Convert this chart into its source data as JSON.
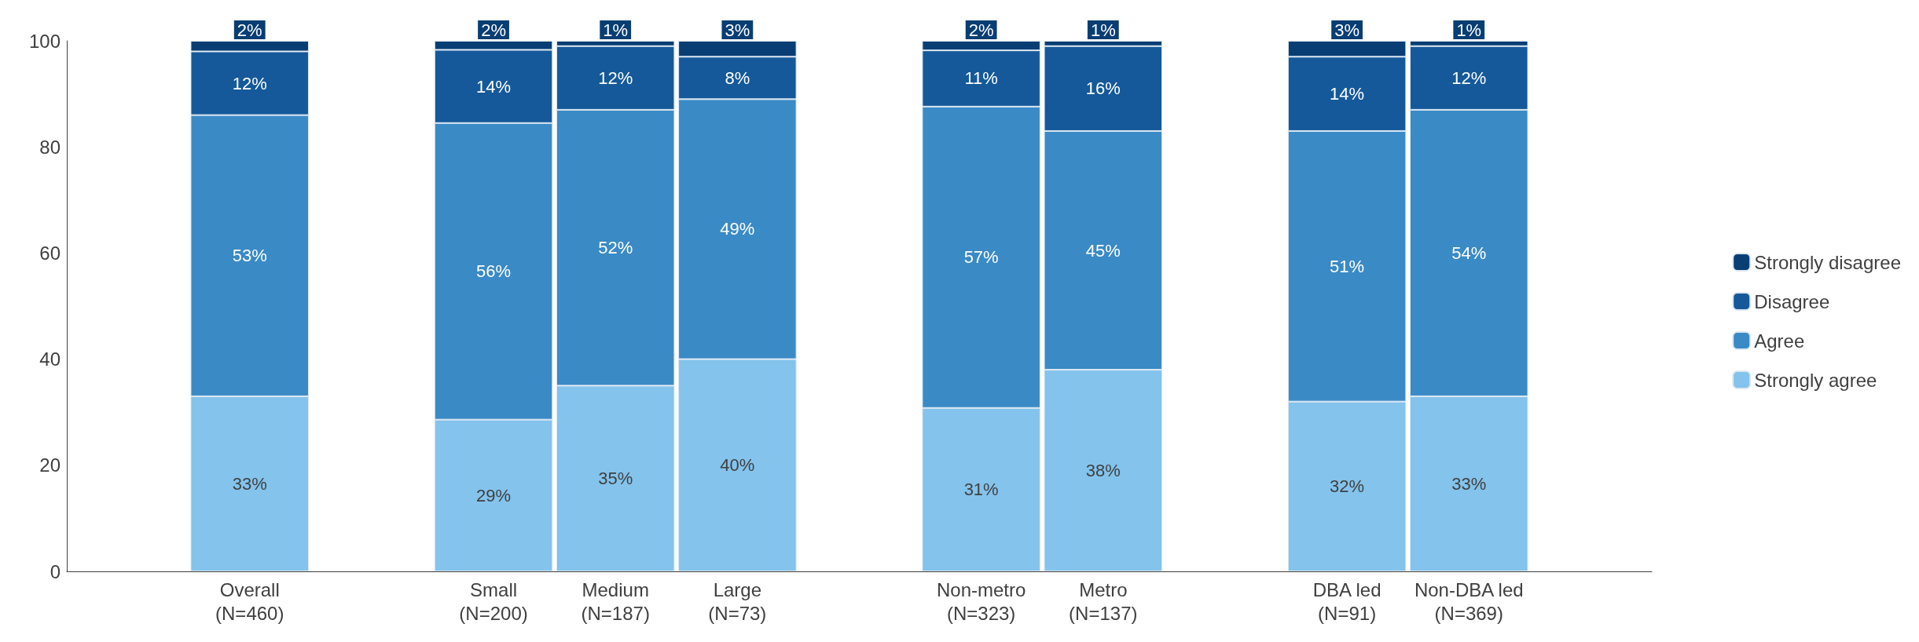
{
  "chart_data": {
    "type": "bar",
    "stacked": true,
    "categories": [
      null,
      "Overall\n(N=460)",
      null,
      "Small\n(N=200)",
      "Medium\n(N=187)",
      "Large\n(N=73)",
      null,
      "Non-metro\n(N=323)",
      "Metro\n(N=137)",
      null,
      "DBA led\n(N=91)",
      "Non-DBA led\n(N=369)",
      null
    ],
    "ylim": [
      0,
      100
    ],
    "yticks": [
      0,
      20,
      40,
      60,
      80,
      100
    ],
    "grid": false,
    "legend": "right",
    "series": [
      {
        "name": "Strongly agree",
        "color": "#83c3ec",
        "values": [
          null,
          33,
          null,
          28.6,
          35,
          40,
          null,
          30.8,
          38,
          null,
          32,
          33,
          null
        ],
        "value_labels": [
          null,
          "33%",
          null,
          "29%",
          "35%",
          "40%",
          null,
          "31%",
          "38%",
          null,
          "32%",
          "33%",
          null
        ]
      },
      {
        "name": "Agree",
        "color": "#3a8ac6",
        "values": [
          null,
          53,
          null,
          55.9,
          52,
          49,
          null,
          56.8,
          45,
          null,
          51,
          54,
          null
        ],
        "value_labels": [
          null,
          "53%",
          null,
          "56%",
          "52%",
          "49%",
          null,
          "57%",
          "45%",
          null,
          "51%",
          "54%",
          null
        ]
      },
      {
        "name": "Disagree",
        "color": "#15599a",
        "values": [
          null,
          12,
          null,
          13.8,
          12,
          8,
          null,
          10.6,
          16,
          null,
          14,
          12,
          null
        ],
        "value_labels": [
          null,
          "12%",
          null,
          "14%",
          "12%",
          "8%",
          null,
          "11%",
          "16%",
          null,
          "14%",
          "12%",
          null
        ]
      },
      {
        "name": "Strongly disagree",
        "color": "#083e74",
        "values": [
          null,
          2,
          null,
          1.7,
          1,
          3,
          null,
          1.8,
          1,
          null,
          3,
          1,
          null
        ],
        "value_labels": [
          null,
          "2%",
          null,
          "2%",
          "1%",
          "3%",
          null,
          "2%",
          "1%",
          null,
          "3%",
          "1%",
          null
        ]
      }
    ]
  }
}
